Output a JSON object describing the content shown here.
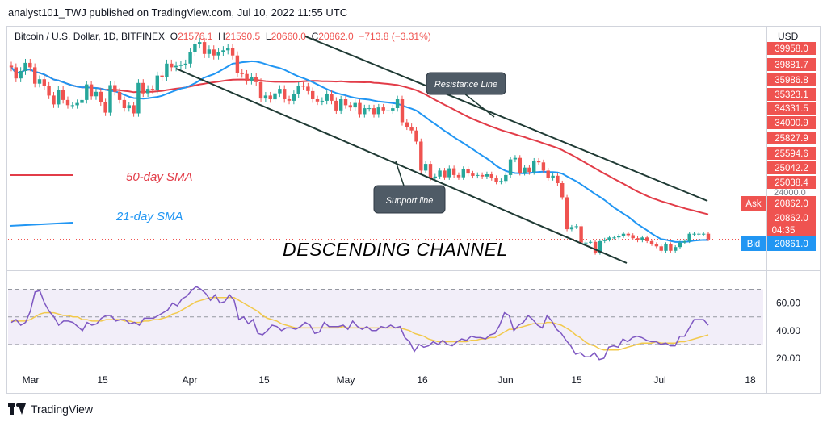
{
  "header": {
    "publisher_line": "analyst101_TWJ published on TradingView.com, Jul 10, 2022 11:55 UTC"
  },
  "legend": {
    "symbol": "Bitcoin / U.S. Dollar, 1D, BITFINEX",
    "o_label": "O",
    "o_value": "21576.1",
    "h_label": "H",
    "h_value": "21590.5",
    "l_label": "L",
    "l_value": "20660.0",
    "c_label": "C",
    "c_value": "20862.0",
    "change": "−713.8 (−3.31%)"
  },
  "currency": "USD",
  "footer": {
    "brand": "TradingView"
  },
  "colors": {
    "up": "#26a69a",
    "down": "#ef5350",
    "sma50": "#e23c48",
    "sma21": "#2196f3",
    "rsi": "#7e57c2",
    "rsi_ma": "#f2c94c",
    "channel": "#1f3a34",
    "price_tag": "#ef5350",
    "bid_tag": "#2196f3"
  },
  "chart_data": [
    {
      "type": "candlestick",
      "title": "Bitcoin / U.S. Dollar, 1D, BITFINEX",
      "ylabel": "USD",
      "price_scale_labels": [
        "39958.0",
        "39881.7",
        "35986.8",
        "35323.1",
        "34331.5",
        "34000.9",
        "25827.9",
        "25594.6",
        "25042.2",
        "25038.4",
        "24000.0",
        "20862.0",
        "20862.0",
        "20861.0"
      ],
      "price_tags": [
        {
          "label": "Ask",
          "value": "20862.0"
        },
        {
          "label": "",
          "value": "20862.0",
          "sub": "04:35"
        },
        {
          "label": "Bid",
          "value": "20861.0"
        }
      ],
      "x_tick_labels": [
        "Mar",
        "15",
        "Apr",
        "15",
        "May",
        "16",
        "Jun",
        "15",
        "Jul",
        "18"
      ],
      "ylim": [
        17000,
        48500
      ],
      "closes": [
        44000,
        42500,
        43500,
        44600,
        44000,
        41800,
        42400,
        41500,
        40200,
        39000,
        41000,
        39600,
        38900,
        38900,
        39200,
        39600,
        41700,
        40100,
        40700,
        39300,
        37900,
        41600,
        40700,
        39600,
        38500,
        38900,
        37800,
        41900,
        40500,
        41100,
        41000,
        42900,
        42700,
        44500,
        44000,
        44200,
        44300,
        44500,
        46000,
        47100,
        47400,
        45800,
        46400,
        45600,
        46100,
        46300,
        46600,
        45600,
        43200,
        43100,
        42200,
        42700,
        42000,
        39800,
        40200,
        39700,
        40500,
        41100,
        39700,
        39500,
        40400,
        41500,
        41400,
        40800,
        39700,
        39400,
        39500,
        40400,
        39500,
        38200,
        39700,
        38900,
        38600,
        39200,
        37700,
        38500,
        38500,
        37700,
        38600,
        38200,
        38200,
        38500,
        39700,
        36600,
        36000,
        35500,
        34000,
        30100,
        31000,
        29100,
        29300,
        30100,
        29200,
        30400,
        29500,
        29200,
        30300,
        29700,
        29400,
        29500,
        29300,
        29600,
        29100,
        28600,
        28700,
        29500,
        31600,
        31800,
        29800,
        30500,
        29900,
        31400,
        31200,
        30100,
        29100,
        29400,
        28400,
        26500,
        22200,
        22500,
        22600,
        20400,
        20400,
        20500,
        19000,
        20600,
        20800,
        21100,
        21100,
        21300,
        21600,
        21400,
        21000,
        20700,
        21100,
        20600,
        20200,
        19900,
        19300,
        20200,
        19300,
        19800,
        20400,
        20600,
        21600,
        21600,
        21600,
        21600,
        20862
      ],
      "series": [
        {
          "name": "50-day SMA",
          "color": "#e23c48"
        },
        {
          "name": "21-day SMA",
          "color": "#2196f3"
        }
      ],
      "annotations": [
        "Resistance Line",
        "Support line",
        "DESCENDING CHANNEL"
      ]
    },
    {
      "type": "line",
      "title": "",
      "y_tick_labels": [
        "60.00",
        "40.00",
        "20.00"
      ],
      "ylim": [
        13,
        82
      ],
      "bands": [
        70,
        50,
        30
      ],
      "series": [
        {
          "name": "",
          "values": [
            46,
            48,
            44,
            46,
            54,
            68,
            69,
            60,
            54,
            50,
            44,
            47,
            47,
            46,
            43,
            40,
            46,
            44,
            45,
            49,
            51,
            51,
            47,
            48,
            48,
            45,
            46,
            44,
            49,
            49,
            49,
            51,
            53,
            55,
            60,
            58,
            63,
            65,
            69,
            72,
            70,
            67,
            62,
            66,
            60,
            61,
            66,
            62,
            48,
            50,
            45,
            48,
            38,
            37,
            40,
            44,
            43,
            40,
            42,
            42,
            41,
            43,
            46,
            44,
            38,
            39,
            46,
            43,
            43,
            43,
            44,
            41,
            47,
            43,
            41,
            43,
            40,
            40,
            43,
            42,
            44,
            42,
            43,
            35,
            32,
            25,
            30,
            28,
            29,
            32,
            30,
            33,
            30,
            29,
            32,
            34,
            33,
            36,
            35,
            35,
            34,
            37,
            38,
            44,
            53,
            51,
            40,
            44,
            46,
            51,
            48,
            44,
            42,
            51,
            47,
            41,
            38,
            33,
            29,
            23,
            24,
            21,
            21,
            24,
            19,
            20,
            28,
            29,
            28,
            34,
            32,
            35,
            36,
            35,
            33,
            32,
            32,
            30,
            31,
            29,
            29,
            36,
            36,
            42,
            48,
            48,
            48,
            44
          ]
        },
        {
          "name": "",
          "values": [
            47,
            47,
            47,
            47,
            48,
            50,
            52,
            53,
            53,
            53,
            52,
            51,
            51,
            50,
            50,
            48,
            48,
            47,
            47,
            47,
            48,
            48,
            48,
            48,
            47,
            47,
            46,
            46,
            47,
            47,
            48,
            48,
            49,
            50,
            52,
            53,
            55,
            57,
            59,
            61,
            62,
            63,
            64,
            64,
            64,
            64,
            64,
            64,
            62,
            60,
            58,
            56,
            54,
            51,
            49,
            48,
            47,
            45,
            44,
            43,
            42,
            42,
            42,
            42,
            42,
            42,
            42,
            42,
            42,
            42,
            43,
            42,
            42,
            42,
            42,
            42,
            42,
            42,
            42,
            42,
            42,
            42,
            42,
            41,
            40,
            38,
            37,
            36,
            34,
            33,
            32,
            32,
            32,
            32,
            32,
            32,
            32,
            33,
            33,
            34,
            34,
            35,
            35,
            37,
            39,
            41,
            41,
            42,
            43,
            44,
            45,
            45,
            45,
            46,
            46,
            45,
            44,
            42,
            40,
            37,
            35,
            32,
            30,
            29,
            27,
            26,
            26,
            26,
            26,
            27,
            28,
            29,
            30,
            31,
            31,
            31,
            32,
            31,
            31,
            31,
            31,
            32,
            32,
            33,
            34,
            35,
            36,
            37
          ]
        }
      ]
    }
  ]
}
